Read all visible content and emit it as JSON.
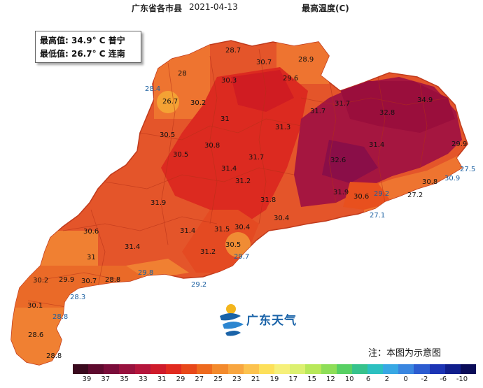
{
  "header": {
    "region": "广东省各市县",
    "date": "2021-04-13",
    "product": "最高温度(C)"
  },
  "info": {
    "max_line": "最高值: 34.9° C  普宁",
    "min_line": "最低值: 26.7° C  连南"
  },
  "map": {
    "stations": [
      {
        "v": "28.7"
      },
      {
        "v": "30.7"
      },
      {
        "v": "28.9"
      },
      {
        "v": "28"
      },
      {
        "v": "30.3"
      },
      {
        "v": "29.6"
      },
      {
        "v": "28.4"
      },
      {
        "v": "26.7"
      },
      {
        "v": "30.2"
      },
      {
        "v": "31.7"
      },
      {
        "v": "31"
      },
      {
        "v": "31.3"
      },
      {
        "v": "30.5"
      },
      {
        "v": "30.8"
      },
      {
        "v": "29.9"
      },
      {
        "v": "30.5"
      },
      {
        "v": "31.7"
      },
      {
        "v": "27.5"
      },
      {
        "v": "31.4"
      },
      {
        "v": "31.2"
      },
      {
        "v": "30.6"
      },
      {
        "v": "29.2"
      },
      {
        "v": "30.8"
      },
      {
        "v": "30.9"
      },
      {
        "v": "31.9"
      },
      {
        "v": "27.2"
      },
      {
        "v": "31.8"
      },
      {
        "v": "27.1"
      },
      {
        "v": "30.4"
      },
      {
        "v": "30.6"
      },
      {
        "v": "31.4"
      },
      {
        "v": "30.4"
      },
      {
        "v": "31.5"
      },
      {
        "v": "31.4"
      },
      {
        "v": "30.5"
      },
      {
        "v": "31.2"
      },
      {
        "v": "29.7"
      },
      {
        "v": "29.8"
      },
      {
        "v": "29.2"
      },
      {
        "v": "30.2"
      },
      {
        "v": "29.9"
      },
      {
        "v": "30.7"
      },
      {
        "v": "28.8"
      },
      {
        "v": "28.3"
      },
      {
        "v": "30.1"
      },
      {
        "v": "28.8"
      },
      {
        "v": "28.6"
      },
      {
        "v": "28.8"
      },
      {
        "v": "31"
      },
      {
        "v": "31.7"
      },
      {
        "v": "32.6"
      },
      {
        "v": "31.4"
      },
      {
        "v": "31.9"
      },
      {
        "v": "32.8"
      },
      {
        "v": "34.9"
      }
    ]
  },
  "logo": {
    "text": "广东天气"
  },
  "note": "注：本图为示意图",
  "legend": {
    "colors": [
      "#3a0a1e",
      "#5e0a2e",
      "#7a0d3a",
      "#98123e",
      "#b4153c",
      "#cf1b2b",
      "#e12a1f",
      "#e8481a",
      "#ee6a1e",
      "#f38a2c",
      "#f8a640",
      "#fcc24e",
      "#fde05a",
      "#f6f07a",
      "#dcf070",
      "#b8e85a",
      "#8ede58",
      "#58d064",
      "#36c28c",
      "#2cc0c0",
      "#38a8e4",
      "#3a86e0",
      "#2c5cd0",
      "#1c34b4",
      "#101e8c",
      "#0a0c58"
    ],
    "ticks": [
      "39",
      "37",
      "35",
      "33",
      "31",
      "29",
      "27",
      "25",
      "23",
      "21",
      "19",
      "17",
      "15",
      "12",
      "10",
      "6",
      "2",
      "0",
      "-2",
      "-6",
      "-10"
    ]
  }
}
